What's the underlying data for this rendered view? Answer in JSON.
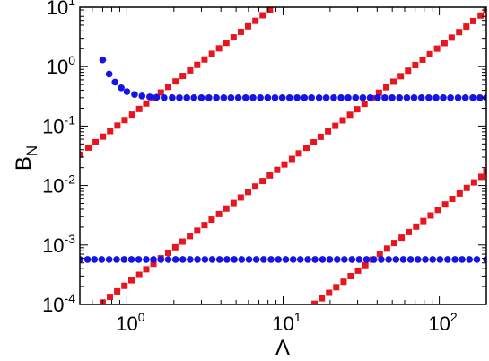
{
  "chart_data": {
    "type": "scatter",
    "title": "",
    "xlabel": "Λ",
    "ylabel_main": "B",
    "ylabel_sub": "N",
    "xscale": "log",
    "yscale": "log",
    "xlim": [
      0.5,
      200
    ],
    "ylim": [
      0.0001,
      10
    ],
    "grid": false,
    "legend": "none",
    "x_ticks": [
      {
        "value": 1,
        "base": "10",
        "exp": "0"
      },
      {
        "value": 10,
        "base": "10",
        "exp": "1"
      },
      {
        "value": 100,
        "base": "10",
        "exp": "2"
      }
    ],
    "y_ticks": [
      {
        "value": 0.0001,
        "base": "10",
        "exp": "-4"
      },
      {
        "value": 0.001,
        "base": "10",
        "exp": "-3"
      },
      {
        "value": 0.01,
        "base": "10",
        "exp": "-2"
      },
      {
        "value": 0.1,
        "base": "10",
        "exp": "-1"
      },
      {
        "value": 1,
        "base": "10",
        "exp": "0"
      },
      {
        "value": 10,
        "base": "10",
        "exp": "1"
      }
    ],
    "series": [
      {
        "color": "#e8141e",
        "marker": "square",
        "points": [
          [
            0.5,
            0.033
          ],
          [
            0.567,
            0.0434
          ],
          [
            0.631,
            0.0536
          ],
          [
            0.702,
            0.0664
          ],
          [
            0.781,
            0.0822
          ],
          [
            0.87,
            0.102
          ],
          [
            0.968,
            0.126
          ],
          [
            1.08,
            0.156
          ],
          [
            1.2,
            0.194
          ],
          [
            1.33,
            0.24
          ],
          [
            1.48,
            0.297
          ],
          [
            1.65,
            0.367
          ],
          [
            1.84,
            0.455
          ],
          [
            2.05,
            0.563
          ],
          [
            2.28,
            0.697
          ],
          [
            2.54,
            0.864
          ],
          [
            2.82,
            1.07
          ],
          [
            3.14,
            1.32
          ],
          [
            3.5,
            1.64
          ],
          [
            3.89,
            2.03
          ],
          [
            4.33,
            2.51
          ],
          [
            4.82,
            3.11
          ],
          [
            5.37,
            3.85
          ],
          [
            5.97,
            4.77
          ],
          [
            6.65,
            5.9
          ],
          [
            7.4,
            7.31
          ],
          [
            8.24,
            9.05
          ]
        ]
      },
      {
        "color": "#e8141e",
        "marker": "square",
        "points": [
          [
            0.7,
            0.000108
          ],
          [
            0.779,
            0.000134
          ],
          [
            0.867,
            0.000166
          ],
          [
            0.965,
            0.000206
          ],
          [
            1.07,
            0.000255
          ],
          [
            1.2,
            0.000315
          ],
          [
            1.33,
            0.00039
          ],
          [
            1.48,
            0.000483
          ],
          [
            1.65,
            0.000598
          ],
          [
            1.84,
            0.00074
          ],
          [
            2.04,
            0.000917
          ],
          [
            2.27,
            0.00114
          ],
          [
            2.53,
            0.00141
          ],
          [
            2.82,
            0.00174
          ],
          [
            3.14,
            0.00216
          ],
          [
            3.49,
            0.00267
          ],
          [
            3.89,
            0.00331
          ],
          [
            4.33,
            0.0041
          ],
          [
            4.82,
            0.00507
          ],
          [
            5.36,
            0.00628
          ],
          [
            5.97,
            0.00777
          ],
          [
            6.64,
            0.00962
          ],
          [
            7.39,
            0.0119
          ],
          [
            8.23,
            0.0148
          ],
          [
            9.16,
            0.0183
          ],
          [
            10.2,
            0.0226
          ],
          [
            11.4,
            0.028
          ],
          [
            12.6,
            0.0347
          ],
          [
            14.1,
            0.043
          ],
          [
            15.7,
            0.0532
          ],
          [
            17.4,
            0.0659
          ],
          [
            19.4,
            0.0816
          ],
          [
            21.6,
            0.101
          ],
          [
            24.1,
            0.125
          ],
          [
            26.8,
            0.155
          ],
          [
            29.8,
            0.192
          ],
          [
            33.2,
            0.237
          ],
          [
            36.9,
            0.294
          ],
          [
            41.1,
            0.364
          ],
          [
            45.8,
            0.45
          ],
          [
            50.9,
            0.558
          ],
          [
            56.7,
            0.691
          ],
          [
            63.1,
            0.855
          ],
          [
            70.2,
            1.06
          ],
          [
            78.2,
            1.31
          ],
          [
            87,
            1.62
          ],
          [
            96.8,
            2.01
          ],
          [
            108,
            2.49
          ],
          [
            120,
            3.08
          ],
          [
            134,
            3.81
          ],
          [
            149,
            4.72
          ],
          [
            165,
            5.85
          ],
          [
            184,
            7.24
          ],
          [
            200,
            8.97
          ]
        ]
      },
      {
        "color": "#e8141e",
        "marker": "square",
        "points": [
          [
            15.9,
            0.000103
          ],
          [
            17.7,
            0.000127
          ],
          [
            19.7,
            0.000157
          ],
          [
            21.9,
            0.000195
          ],
          [
            24.4,
            0.000241
          ],
          [
            27.1,
            0.000299
          ],
          [
            30.2,
            0.00037
          ],
          [
            33.6,
            0.000458
          ],
          [
            37.4,
            0.000567
          ],
          [
            41.6,
            0.000702
          ],
          [
            46.3,
            0.000869
          ],
          [
            51.5,
            0.00108
          ],
          [
            57.4,
            0.00133
          ],
          [
            63.8,
            0.00165
          ],
          [
            71.1,
            0.00204
          ],
          [
            79.1,
            0.00253
          ],
          [
            88,
            0.00313
          ],
          [
            98,
            0.00388
          ],
          [
            109,
            0.0048
          ],
          [
            121,
            0.00595
          ],
          [
            135,
            0.00736
          ],
          [
            150,
            0.00912
          ],
          [
            167,
            0.0113
          ],
          [
            186,
            0.014
          ],
          [
            200,
            0.0173
          ]
        ]
      },
      {
        "color": "#1414e6",
        "marker": "circle",
        "points": [
          [
            0.7,
            1.3
          ],
          [
            0.77,
            0.75
          ],
          [
            0.84,
            0.55
          ],
          [
            0.92,
            0.44
          ],
          [
            1.0,
            0.38
          ],
          [
            1.12,
            0.34
          ],
          [
            1.25,
            0.32
          ],
          [
            1.4,
            0.31
          ],
          [
            1.55,
            0.305
          ],
          [
            1.73,
            0.3
          ],
          [
            1.95,
            0.3
          ],
          [
            2.17,
            0.3
          ],
          [
            2.42,
            0.3
          ],
          [
            2.69,
            0.3
          ],
          [
            3.0,
            0.3
          ],
          [
            3.35,
            0.3
          ],
          [
            3.74,
            0.3
          ],
          [
            4.17,
            0.3
          ],
          [
            4.64,
            0.3
          ],
          [
            5.17,
            0.3
          ],
          [
            5.76,
            0.3
          ],
          [
            6.42,
            0.3
          ],
          [
            7.15,
            0.3
          ],
          [
            7.97,
            0.3
          ],
          [
            8.88,
            0.3
          ],
          [
            9.89,
            0.3
          ],
          [
            11.0,
            0.3
          ],
          [
            12.3,
            0.3
          ],
          [
            13.7,
            0.3
          ],
          [
            15.2,
            0.3
          ],
          [
            17.0,
            0.3
          ],
          [
            18.9,
            0.3
          ],
          [
            21.1,
            0.3
          ],
          [
            23.5,
            0.3
          ],
          [
            26.1,
            0.3
          ],
          [
            29.1,
            0.3
          ],
          [
            32.4,
            0.3
          ],
          [
            36.1,
            0.3
          ],
          [
            40.3,
            0.3
          ],
          [
            44.8,
            0.3
          ],
          [
            49.9,
            0.3
          ],
          [
            55.6,
            0.3
          ],
          [
            62.0,
            0.3
          ],
          [
            69.0,
            0.3
          ],
          [
            76.9,
            0.3
          ],
          [
            85.6,
            0.3
          ],
          [
            95.4,
            0.3
          ],
          [
            106,
            0.3
          ],
          [
            118,
            0.3
          ],
          [
            132,
            0.3
          ],
          [
            147,
            0.3
          ],
          [
            164,
            0.3
          ],
          [
            182,
            0.3
          ],
          [
            200,
            0.3
          ]
        ]
      },
      {
        "color": "#1414e6",
        "marker": "circle",
        "points": [
          [
            0.5,
            0.00057
          ],
          [
            0.56,
            0.00057
          ],
          [
            0.62,
            0.00057
          ],
          [
            0.69,
            0.00057
          ],
          [
            0.77,
            0.00057
          ],
          [
            0.86,
            0.00057
          ],
          [
            0.96,
            0.00057
          ],
          [
            1.07,
            0.00057
          ],
          [
            1.19,
            0.00057
          ],
          [
            1.33,
            0.00057
          ],
          [
            1.48,
            0.00057
          ],
          [
            1.65,
            0.00057
          ],
          [
            1.84,
            0.00057
          ],
          [
            2.05,
            0.00057
          ],
          [
            2.28,
            0.00057
          ],
          [
            2.54,
            0.00057
          ],
          [
            2.83,
            0.00057
          ],
          [
            3.16,
            0.00057
          ],
          [
            3.52,
            0.00057
          ],
          [
            3.92,
            0.00057
          ],
          [
            4.37,
            0.00057
          ],
          [
            4.87,
            0.00057
          ],
          [
            5.43,
            0.00057
          ],
          [
            6.05,
            0.00057
          ],
          [
            6.74,
            0.00057
          ],
          [
            7.51,
            0.00057
          ],
          [
            8.37,
            0.00057
          ],
          [
            9.33,
            0.00057
          ],
          [
            10.4,
            0.00057
          ],
          [
            11.6,
            0.00057
          ],
          [
            12.9,
            0.00057
          ],
          [
            14.4,
            0.00057
          ],
          [
            16.0,
            0.00057
          ],
          [
            17.9,
            0.00057
          ],
          [
            19.9,
            0.00057
          ],
          [
            22.2,
            0.00057
          ],
          [
            24.7,
            0.00057
          ],
          [
            27.6,
            0.00057
          ],
          [
            30.7,
            0.00057
          ],
          [
            34.2,
            0.00057
          ],
          [
            38.1,
            0.00057
          ],
          [
            42.5,
            0.00057
          ],
          [
            47.4,
            0.00057
          ],
          [
            52.8,
            0.00057
          ],
          [
            58.8,
            0.00057
          ],
          [
            65.5,
            0.00057
          ],
          [
            73.0,
            0.00057
          ],
          [
            81.4,
            0.00057
          ],
          [
            90.7,
            0.00057
          ],
          [
            101,
            0.00057
          ],
          [
            113,
            0.00057
          ],
          [
            126,
            0.00057
          ],
          [
            140,
            0.00057
          ],
          [
            156,
            0.00057
          ],
          [
            174,
            0.00057
          ],
          [
            200,
            0.00057
          ]
        ]
      }
    ]
  }
}
